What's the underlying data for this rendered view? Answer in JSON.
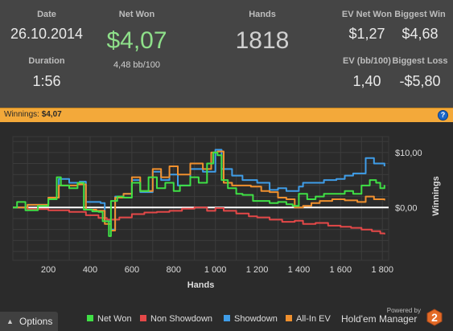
{
  "stats": {
    "date": {
      "label": "Date",
      "value": "26.10.2014"
    },
    "duration": {
      "label": "Duration",
      "value": "1:56"
    },
    "net_won": {
      "label": "Net Won",
      "value": "$4,07",
      "sub": "4,48 bb/100"
    },
    "hands": {
      "label": "Hands",
      "value": "1818"
    },
    "ev_net_won": {
      "label": "EV Net Won",
      "value": "$1,27"
    },
    "biggest_win": {
      "label": "Biggest Win",
      "value": "$4,68"
    },
    "ev_bb100": {
      "label": "EV (bb/100)",
      "value": "1,40"
    },
    "biggest_loss": {
      "label": "Biggest Loss",
      "value": "-$5,80"
    }
  },
  "winnings_bar": {
    "label": "Winnings:",
    "value": "$4,07",
    "help_icon": "?"
  },
  "footer": {
    "options_label": "Options",
    "powered_by": "Powered by",
    "brand_name": "Hold'em Manager",
    "logo_text": "2"
  },
  "colors": {
    "net_won": "#3fe045",
    "non_showdown": "#e44848",
    "showdown": "#3f9de8",
    "all_in_ev": "#f0902e",
    "accent_bar": "#f3a93a",
    "net_won_value": "#8ee08a"
  },
  "chart_data": {
    "type": "line",
    "xlabel": "Hands",
    "ylabel": "Winnings",
    "x_ticks": [
      "200",
      "400",
      "600",
      "800",
      "1 000",
      "1 200",
      "1 400",
      "1 600",
      "1 800"
    ],
    "y_ticks": [
      "$10,00",
      "$0,00"
    ],
    "xlim": [
      30,
      1830
    ],
    "ylim": [
      -9.6,
      12.9
    ],
    "grid": true,
    "legend_position": "bottom",
    "series": [
      {
        "name": "Net Won",
        "color": "#3fe045",
        "points": [
          [
            30,
            0
          ],
          [
            50,
            1
          ],
          [
            90,
            -0.5
          ],
          [
            150,
            0.3
          ],
          [
            200,
            1.5
          ],
          [
            240,
            5.5
          ],
          [
            260,
            4
          ],
          [
            300,
            3.5
          ],
          [
            340,
            4.5
          ],
          [
            370,
            -0.4
          ],
          [
            410,
            -0.7
          ],
          [
            440,
            -0.8
          ],
          [
            460,
            -2.5
          ],
          [
            490,
            -5.2
          ],
          [
            500,
            1.2
          ],
          [
            530,
            2
          ],
          [
            560,
            1.8
          ],
          [
            600,
            4.5
          ],
          [
            640,
            3
          ],
          [
            680,
            5.5
          ],
          [
            720,
            3.5
          ],
          [
            760,
            4.5
          ],
          [
            800,
            3
          ],
          [
            830,
            4
          ],
          [
            880,
            5.5
          ],
          [
            920,
            4.5
          ],
          [
            960,
            8
          ],
          [
            990,
            10
          ],
          [
            1010,
            9.5
          ],
          [
            1030,
            5
          ],
          [
            1060,
            3.5
          ],
          [
            1100,
            2.5
          ],
          [
            1130,
            2.3
          ],
          [
            1180,
            1.2
          ],
          [
            1220,
            1.2
          ],
          [
            1260,
            0.8
          ],
          [
            1300,
            1
          ],
          [
            1340,
            0.6
          ],
          [
            1370,
            0.3
          ],
          [
            1400,
            2.5
          ],
          [
            1440,
            1.5
          ],
          [
            1480,
            2
          ],
          [
            1520,
            2.5
          ],
          [
            1580,
            2.5
          ],
          [
            1620,
            3
          ],
          [
            1660,
            2.5
          ],
          [
            1700,
            4
          ],
          [
            1740,
            5
          ],
          [
            1770,
            4.5
          ],
          [
            1790,
            3.5
          ],
          [
            1810,
            4.1
          ]
        ]
      },
      {
        "name": "Non Showdown",
        "color": "#e44848",
        "points": [
          [
            30,
            0
          ],
          [
            100,
            -0.3
          ],
          [
            200,
            -0.5
          ],
          [
            300,
            -0.8
          ],
          [
            380,
            -1.4
          ],
          [
            440,
            -1.9
          ],
          [
            480,
            -2.2
          ],
          [
            540,
            -1.8
          ],
          [
            600,
            -1.2
          ],
          [
            660,
            -0.9
          ],
          [
            720,
            -0.8
          ],
          [
            780,
            -0.6
          ],
          [
            840,
            -0.2
          ],
          [
            900,
            0
          ],
          [
            960,
            -0.6
          ],
          [
            1000,
            -0.1
          ],
          [
            1040,
            -0.6
          ],
          [
            1100,
            -1.1
          ],
          [
            1160,
            -1.6
          ],
          [
            1200,
            -1.8
          ],
          [
            1260,
            -2.2
          ],
          [
            1320,
            -2.6
          ],
          [
            1380,
            -2.4
          ],
          [
            1420,
            -3
          ],
          [
            1480,
            -2.8
          ],
          [
            1540,
            -3.3
          ],
          [
            1600,
            -3.5
          ],
          [
            1650,
            -3.7
          ],
          [
            1700,
            -4
          ],
          [
            1750,
            -4.3
          ],
          [
            1790,
            -4.7
          ],
          [
            1810,
            -4.9
          ]
        ]
      },
      {
        "name": "Showdown",
        "color": "#3f9de8",
        "points": [
          [
            30,
            0
          ],
          [
            100,
            0.5
          ],
          [
            200,
            1.8
          ],
          [
            250,
            5.2
          ],
          [
            300,
            4.5
          ],
          [
            350,
            4.7
          ],
          [
            380,
            1
          ],
          [
            450,
            0.8
          ],
          [
            470,
            -2.5
          ],
          [
            500,
            -4
          ],
          [
            520,
            2
          ],
          [
            560,
            2.5
          ],
          [
            600,
            5
          ],
          [
            640,
            2.8
          ],
          [
            700,
            6.5
          ],
          [
            740,
            5
          ],
          [
            780,
            6
          ],
          [
            820,
            4
          ],
          [
            880,
            7
          ],
          [
            940,
            6.5
          ],
          [
            1000,
            10.5
          ],
          [
            1030,
            7
          ],
          [
            1080,
            5.8
          ],
          [
            1130,
            5
          ],
          [
            1200,
            4.5
          ],
          [
            1260,
            3.2
          ],
          [
            1300,
            3.5
          ],
          [
            1340,
            3
          ],
          [
            1400,
            3.8
          ],
          [
            1420,
            4.5
          ],
          [
            1460,
            4.5
          ],
          [
            1520,
            5
          ],
          [
            1580,
            5.2
          ],
          [
            1620,
            5.8
          ],
          [
            1660,
            6.2
          ],
          [
            1720,
            9
          ],
          [
            1760,
            8
          ],
          [
            1810,
            7.5
          ]
        ]
      },
      {
        "name": "All-In EV",
        "color": "#f0902e",
        "points": [
          [
            30,
            0
          ],
          [
            100,
            0.5
          ],
          [
            200,
            1.8
          ],
          [
            250,
            4
          ],
          [
            300,
            4
          ],
          [
            340,
            4.2
          ],
          [
            380,
            -0.4
          ],
          [
            430,
            -0.6
          ],
          [
            470,
            -3
          ],
          [
            500,
            -4.2
          ],
          [
            520,
            1.8
          ],
          [
            560,
            2.5
          ],
          [
            600,
            5.5
          ],
          [
            640,
            3
          ],
          [
            700,
            7
          ],
          [
            740,
            5.5
          ],
          [
            780,
            7.5
          ],
          [
            820,
            6
          ],
          [
            880,
            8
          ],
          [
            940,
            7
          ],
          [
            980,
            10
          ],
          [
            1010,
            10.2
          ],
          [
            1040,
            4.5
          ],
          [
            1080,
            4
          ],
          [
            1130,
            4
          ],
          [
            1170,
            3.8
          ],
          [
            1220,
            3
          ],
          [
            1260,
            2.8
          ],
          [
            1300,
            1.8
          ],
          [
            1340,
            1.5
          ],
          [
            1380,
            0
          ],
          [
            1420,
            0.3
          ],
          [
            1460,
            0.8
          ],
          [
            1500,
            1.2
          ],
          [
            1560,
            1.5
          ],
          [
            1620,
            1.3
          ],
          [
            1680,
            1
          ],
          [
            1720,
            2
          ],
          [
            1760,
            1.5
          ],
          [
            1810,
            1.3
          ]
        ]
      }
    ]
  }
}
